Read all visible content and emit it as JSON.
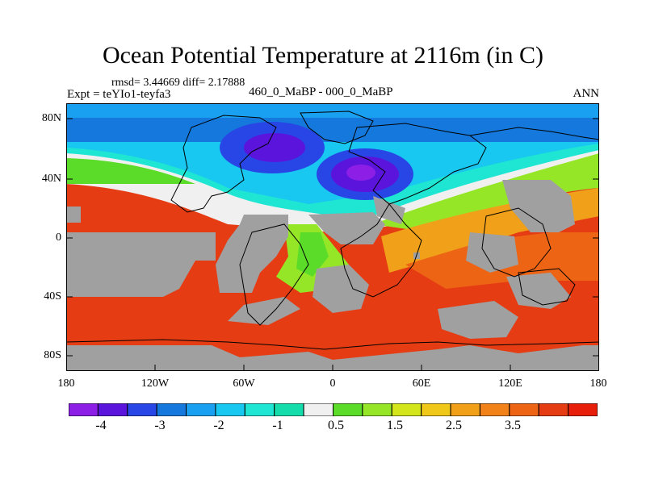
{
  "title": "Ocean Potential Temperature at 2116m (in C)",
  "stats": "rmsd= 3.44669 diff= 2.17888",
  "expt": "Expt = teYIo1-teyfa3",
  "subtitle": "460_0_MaBP - 000_0_MaBP",
  "season": "ANN",
  "lat_ticks": [
    "80N",
    "40N",
    "0",
    "40S",
    "80S"
  ],
  "lon_ticks": [
    "180",
    "120W",
    "60W",
    "0",
    "60E",
    "120E",
    "180"
  ],
  "colorbar": {
    "colors": [
      "#8c1ee6",
      "#5a14dc",
      "#2846e6",
      "#1478dc",
      "#19a0f0",
      "#19c8f0",
      "#1ee6d2",
      "#14dcaa",
      "#f0f0f0",
      "#5adc28",
      "#96e628",
      "#d2e619",
      "#f0c819",
      "#f0a019",
      "#f08219",
      "#ec6414",
      "#e63c14",
      "#e61e0a"
    ],
    "labels": [
      "-4",
      "-3",
      "-2",
      "-1",
      "0.5",
      "1.5",
      "2.5",
      "3.5"
    ]
  },
  "map_colors": {
    "land": "#a0a0a0",
    "warm": "#e63c14",
    "outline": "#000000"
  }
}
